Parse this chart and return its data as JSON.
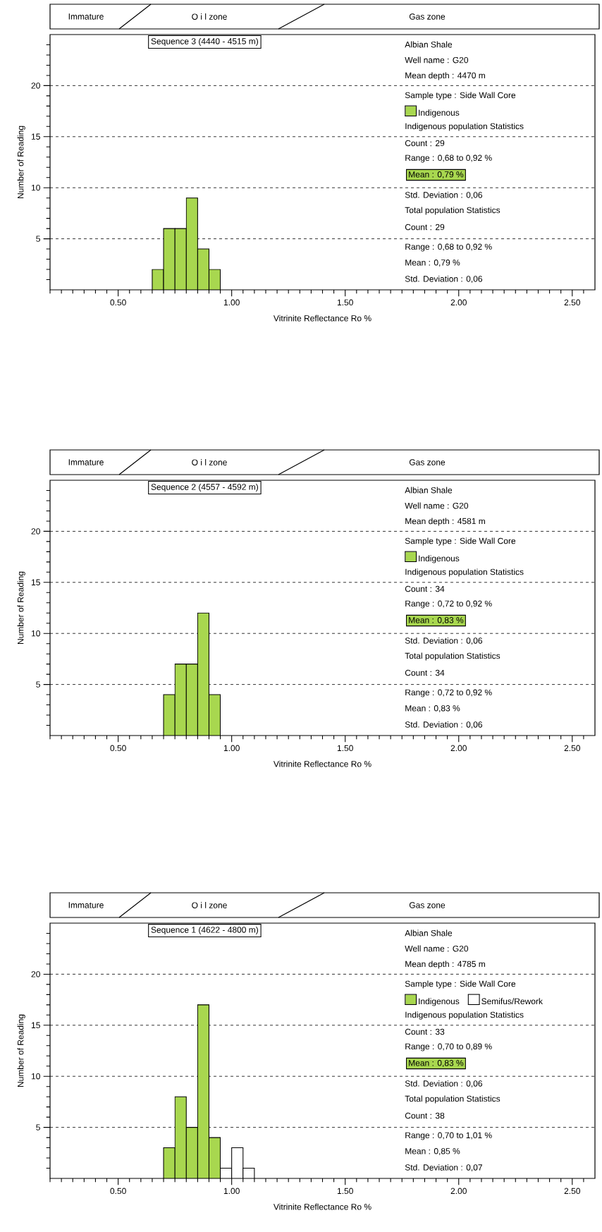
{
  "chart_data": [
    {
      "type": "histogram",
      "title": "Sequence 3 (4440 - 4515 m)",
      "xlabel": "Vitrinite  Reflectance  Ro %",
      "ylabel": "Number of Reading",
      "annotations": [
        "Immature",
        "O i l  zone",
        "Gas  zone",
        "Albian Shale",
        "Well name : G20",
        "Mean depth : 4470 m",
        "Sample type : Side Wall Core",
        "Indigenous population Statistics",
        "Count : 29",
        "Range : 0,68 to 0,92 %",
        "Mean : 0,79 %",
        "Std. Deviation : 0,06",
        "Total population Statistics",
        "Count : 29",
        "Range : 0,68 to 0,92 %",
        "Mean : 0,79 %",
        "Std. Deviation : 0,06"
      ],
      "bins": [
        0.65,
        0.7,
        0.75,
        0.8,
        0.85,
        0.9,
        0.95
      ],
      "series": [
        {
          "name": "Indigenous",
          "color": "#a8d74f",
          "values": [
            2,
            6,
            6,
            9,
            4,
            2
          ]
        }
      ],
      "xlim": [
        0.2,
        2.6
      ],
      "ylim": [
        0,
        25
      ],
      "xticks": [
        {
          "value": 0.2,
          "label": null
        },
        {
          "value": 0.25,
          "label": null
        },
        {
          "value": 0.3,
          "label": null
        },
        {
          "value": 0.35,
          "label": null
        },
        {
          "value": 0.4,
          "label": null
        },
        {
          "value": 0.45,
          "label": null
        },
        {
          "value": 0.5,
          "label": "0.50"
        },
        {
          "value": 0.55,
          "label": null
        },
        {
          "value": 0.6,
          "label": null
        },
        {
          "value": 0.65,
          "label": null
        },
        {
          "value": 0.7,
          "label": null
        },
        {
          "value": 0.75,
          "label": null
        },
        {
          "value": 0.8,
          "label": null
        },
        {
          "value": 0.85,
          "label": null
        },
        {
          "value": 0.9,
          "label": null
        },
        {
          "value": 0.95,
          "label": null
        },
        {
          "value": 1.0,
          "label": "1.00"
        },
        {
          "value": 1.05,
          "label": null
        },
        {
          "value": 1.1,
          "label": null
        },
        {
          "value": 1.15,
          "label": null
        },
        {
          "value": 1.2,
          "label": null
        },
        {
          "value": 1.25,
          "label": null
        },
        {
          "value": 1.3,
          "label": null
        },
        {
          "value": 1.35,
          "label": null
        },
        {
          "value": 1.4,
          "label": null
        },
        {
          "value": 1.45,
          "label": null
        },
        {
          "value": 1.5,
          "label": "1.50"
        },
        {
          "value": 1.55,
          "label": null
        },
        {
          "value": 1.6,
          "label": null
        },
        {
          "value": 1.65,
          "label": null
        },
        {
          "value": 1.7,
          "label": null
        },
        {
          "value": 1.75,
          "label": null
        },
        {
          "value": 1.8,
          "label": null
        },
        {
          "value": 1.85,
          "label": null
        },
        {
          "value": 1.9,
          "label": null
        },
        {
          "value": 1.95,
          "label": null
        },
        {
          "value": 2.0,
          "label": "2.00"
        },
        {
          "value": 2.05,
          "label": null
        },
        {
          "value": 2.1,
          "label": null
        },
        {
          "value": 2.15,
          "label": null
        },
        {
          "value": 2.2,
          "label": null
        },
        {
          "value": 2.25,
          "label": null
        },
        {
          "value": 2.3,
          "label": null
        },
        {
          "value": 2.35,
          "label": null
        },
        {
          "value": 2.4,
          "label": null
        },
        {
          "value": 2.45,
          "label": null
        },
        {
          "value": 2.5,
          "label": "2.50"
        },
        {
          "value": 2.55,
          "label": null
        }
      ],
      "yticks": [
        {
          "value": 1,
          "label": null
        },
        {
          "value": 2,
          "label": null
        },
        {
          "value": 3,
          "label": null
        },
        {
          "value": 4,
          "label": null
        },
        5,
        {
          "value": 6,
          "label": null
        },
        {
          "value": 7,
          "label": null
        },
        {
          "value": 8,
          "label": null
        },
        {
          "value": 9,
          "label": null
        },
        10,
        {
          "value": 11,
          "label": null
        },
        {
          "value": 12,
          "label": null
        },
        {
          "value": 13,
          "label": null
        },
        {
          "value": 14,
          "label": null
        },
        15,
        {
          "value": 16,
          "label": null
        },
        {
          "value": 17,
          "label": null
        },
        {
          "value": 18,
          "label": null
        },
        {
          "value": 19,
          "label": null
        },
        20,
        {
          "value": 21,
          "label": null
        },
        {
          "value": 22,
          "label": null
        },
        {
          "value": 23,
          "label": null
        },
        {
          "value": 24,
          "label": null
        }
      ],
      "grid": "y",
      "legend": "top right"
    },
    {
      "type": "histogram",
      "title": "Sequence 2 (4557 - 4592 m)",
      "xlabel": "Vitrinite  Reflectance  Ro %",
      "ylabel": "Number of Reading",
      "annotations": [
        "Immature",
        "O i l  zone",
        "Gas  zone",
        "Albian Shale",
        "Well name : G20",
        "Mean depth : 4581 m",
        "Sample type : Side Wall Core",
        "Indigenous population Statistics",
        "Count : 34",
        "Range : 0,72 to 0,92 %",
        "Mean : 0,83 %",
        "Std. Deviation : 0,06",
        "Total population Statistics",
        "Count : 34",
        "Range : 0,72 to 0,92 %",
        "Mean : 0,83 %",
        "Std. Deviation : 0,06"
      ],
      "bins": [
        0.7,
        0.75,
        0.8,
        0.85,
        0.9,
        0.95
      ],
      "series": [
        {
          "name": "Indigenous",
          "color": "#a8d74f",
          "values": [
            4,
            7,
            7,
            12,
            4
          ]
        }
      ],
      "xlim": [
        0.2,
        2.6
      ],
      "ylim": [
        0,
        25
      ],
      "xticks": [
        {
          "value": 0.2,
          "label": null
        },
        {
          "value": 0.25,
          "label": null
        },
        {
          "value": 0.3,
          "label": null
        },
        {
          "value": 0.35,
          "label": null
        },
        {
          "value": 0.4,
          "label": null
        },
        {
          "value": 0.45,
          "label": null
        },
        {
          "value": 0.5,
          "label": "0.50"
        },
        {
          "value": 0.55,
          "label": null
        },
        {
          "value": 0.6,
          "label": null
        },
        {
          "value": 0.65,
          "label": null
        },
        {
          "value": 0.7,
          "label": null
        },
        {
          "value": 0.75,
          "label": null
        },
        {
          "value": 0.8,
          "label": null
        },
        {
          "value": 0.85,
          "label": null
        },
        {
          "value": 0.9,
          "label": null
        },
        {
          "value": 0.95,
          "label": null
        },
        {
          "value": 1.0,
          "label": "1.00"
        },
        {
          "value": 1.05,
          "label": null
        },
        {
          "value": 1.1,
          "label": null
        },
        {
          "value": 1.15,
          "label": null
        },
        {
          "value": 1.2,
          "label": null
        },
        {
          "value": 1.25,
          "label": null
        },
        {
          "value": 1.3,
          "label": null
        },
        {
          "value": 1.35,
          "label": null
        },
        {
          "value": 1.4,
          "label": null
        },
        {
          "value": 1.45,
          "label": null
        },
        {
          "value": 1.5,
          "label": "1.50"
        },
        {
          "value": 1.55,
          "label": null
        },
        {
          "value": 1.6,
          "label": null
        },
        {
          "value": 1.65,
          "label": null
        },
        {
          "value": 1.7,
          "label": null
        },
        {
          "value": 1.75,
          "label": null
        },
        {
          "value": 1.8,
          "label": null
        },
        {
          "value": 1.85,
          "label": null
        },
        {
          "value": 1.9,
          "label": null
        },
        {
          "value": 1.95,
          "label": null
        },
        {
          "value": 2.0,
          "label": "2.00"
        },
        {
          "value": 2.05,
          "label": null
        },
        {
          "value": 2.1,
          "label": null
        },
        {
          "value": 2.15,
          "label": null
        },
        {
          "value": 2.2,
          "label": null
        },
        {
          "value": 2.25,
          "label": null
        },
        {
          "value": 2.3,
          "label": null
        },
        {
          "value": 2.35,
          "label": null
        },
        {
          "value": 2.4,
          "label": null
        },
        {
          "value": 2.45,
          "label": null
        },
        {
          "value": 2.5,
          "label": "2.50"
        },
        {
          "value": 2.55,
          "label": null
        }
      ],
      "yticks": [
        {
          "value": 1,
          "label": null
        },
        {
          "value": 2,
          "label": null
        },
        {
          "value": 3,
          "label": null
        },
        {
          "value": 4,
          "label": null
        },
        5,
        {
          "value": 6,
          "label": null
        },
        {
          "value": 7,
          "label": null
        },
        {
          "value": 8,
          "label": null
        },
        {
          "value": 9,
          "label": null
        },
        10,
        {
          "value": 11,
          "label": null
        },
        {
          "value": 12,
          "label": null
        },
        {
          "value": 13,
          "label": null
        },
        {
          "value": 14,
          "label": null
        },
        15,
        {
          "value": 16,
          "label": null
        },
        {
          "value": 17,
          "label": null
        },
        {
          "value": 18,
          "label": null
        },
        {
          "value": 19,
          "label": null
        },
        20,
        {
          "value": 21,
          "label": null
        },
        {
          "value": 22,
          "label": null
        },
        {
          "value": 23,
          "label": null
        },
        {
          "value": 24,
          "label": null
        }
      ],
      "grid": "y",
      "legend": "top right"
    },
    {
      "type": "histogram",
      "title": "Sequence 1 (4622 - 4800 m)",
      "xlabel": "Vitrinite  Reflectance  Ro %",
      "ylabel": "Number of Reading",
      "annotations": [
        "Immature",
        "O i l  zone",
        "Gas  zone",
        "Albian Shale",
        "Well name : G20",
        "Mean depth : 4785 m",
        "Sample type : Side Wall Core",
        "Indigenous population Statistics",
        "Count : 33",
        "Range : 0,70 to 0,89 %",
        "Mean : 0,83 %",
        "Std. Deviation : 0,06",
        "Total population Statistics",
        "Count : 38",
        "Range : 0,70 to 1,01 %",
        "Mean : 0,85 %",
        "Std. Deviation : 0,07"
      ],
      "bins": [
        0.7,
        0.75,
        0.8,
        0.85,
        0.9,
        0.95,
        1.0,
        1.05,
        1.1
      ],
      "series": [
        {
          "name": "Indigenous",
          "color": "#a8d74f",
          "values": [
            3,
            8,
            5,
            17,
            4,
            null,
            null,
            null
          ]
        },
        {
          "name": "Semifus/Rework",
          "color": "#ffffff",
          "values": [
            null,
            null,
            null,
            null,
            null,
            1,
            3,
            1
          ]
        }
      ],
      "xlim": [
        0.2,
        2.6
      ],
      "ylim": [
        0,
        25
      ],
      "xticks": [
        {
          "value": 0.2,
          "label": null
        },
        {
          "value": 0.25,
          "label": null
        },
        {
          "value": 0.3,
          "label": null
        },
        {
          "value": 0.35,
          "label": null
        },
        {
          "value": 0.4,
          "label": null
        },
        {
          "value": 0.45,
          "label": null
        },
        {
          "value": 0.5,
          "label": "0.50"
        },
        {
          "value": 0.55,
          "label": null
        },
        {
          "value": 0.6,
          "label": null
        },
        {
          "value": 0.65,
          "label": null
        },
        {
          "value": 0.7,
          "label": null
        },
        {
          "value": 0.75,
          "label": null
        },
        {
          "value": 0.8,
          "label": null
        },
        {
          "value": 0.85,
          "label": null
        },
        {
          "value": 0.9,
          "label": null
        },
        {
          "value": 0.95,
          "label": null
        },
        {
          "value": 1.0,
          "label": "1.00"
        },
        {
          "value": 1.05,
          "label": null
        },
        {
          "value": 1.1,
          "label": null
        },
        {
          "value": 1.15,
          "label": null
        },
        {
          "value": 1.2,
          "label": null
        },
        {
          "value": 1.25,
          "label": null
        },
        {
          "value": 1.3,
          "label": null
        },
        {
          "value": 1.35,
          "label": null
        },
        {
          "value": 1.4,
          "label": null
        },
        {
          "value": 1.45,
          "label": null
        },
        {
          "value": 1.5,
          "label": "1.50"
        },
        {
          "value": 1.55,
          "label": null
        },
        {
          "value": 1.6,
          "label": null
        },
        {
          "value": 1.65,
          "label": null
        },
        {
          "value": 1.7,
          "label": null
        },
        {
          "value": 1.75,
          "label": null
        },
        {
          "value": 1.8,
          "label": null
        },
        {
          "value": 1.85,
          "label": null
        },
        {
          "value": 1.9,
          "label": null
        },
        {
          "value": 1.95,
          "label": null
        },
        {
          "value": 2.0,
          "label": "2.00"
        },
        {
          "value": 2.05,
          "label": null
        },
        {
          "value": 2.1,
          "label": null
        },
        {
          "value": 2.15,
          "label": null
        },
        {
          "value": 2.2,
          "label": null
        },
        {
          "value": 2.25,
          "label": null
        },
        {
          "value": 2.3,
          "label": null
        },
        {
          "value": 2.35,
          "label": null
        },
        {
          "value": 2.4,
          "label": null
        },
        {
          "value": 2.45,
          "label": null
        },
        {
          "value": 2.5,
          "label": "2.50"
        },
        {
          "value": 2.55,
          "label": null
        }
      ],
      "yticks": [
        {
          "value": 1,
          "label": null
        },
        {
          "value": 2,
          "label": null
        },
        {
          "value": 3,
          "label": null
        },
        {
          "value": 4,
          "label": null
        },
        5,
        {
          "value": 6,
          "label": null
        },
        {
          "value": 7,
          "label": null
        },
        {
          "value": 8,
          "label": null
        },
        {
          "value": 9,
          "label": null
        },
        10,
        {
          "value": 11,
          "label": null
        },
        {
          "value": 12,
          "label": null
        },
        {
          "value": 13,
          "label": null
        },
        {
          "value": 14,
          "label": null
        },
        15,
        {
          "value": 16,
          "label": null
        },
        {
          "value": 17,
          "label": null
        },
        {
          "value": 18,
          "label": null
        },
        {
          "value": 19,
          "label": null
        },
        20,
        {
          "value": 21,
          "label": null
        },
        {
          "value": 22,
          "label": null
        },
        {
          "value": 23,
          "label": null
        },
        {
          "value": 24,
          "label": null
        }
      ],
      "grid": "y",
      "legend": "top right"
    }
  ]
}
